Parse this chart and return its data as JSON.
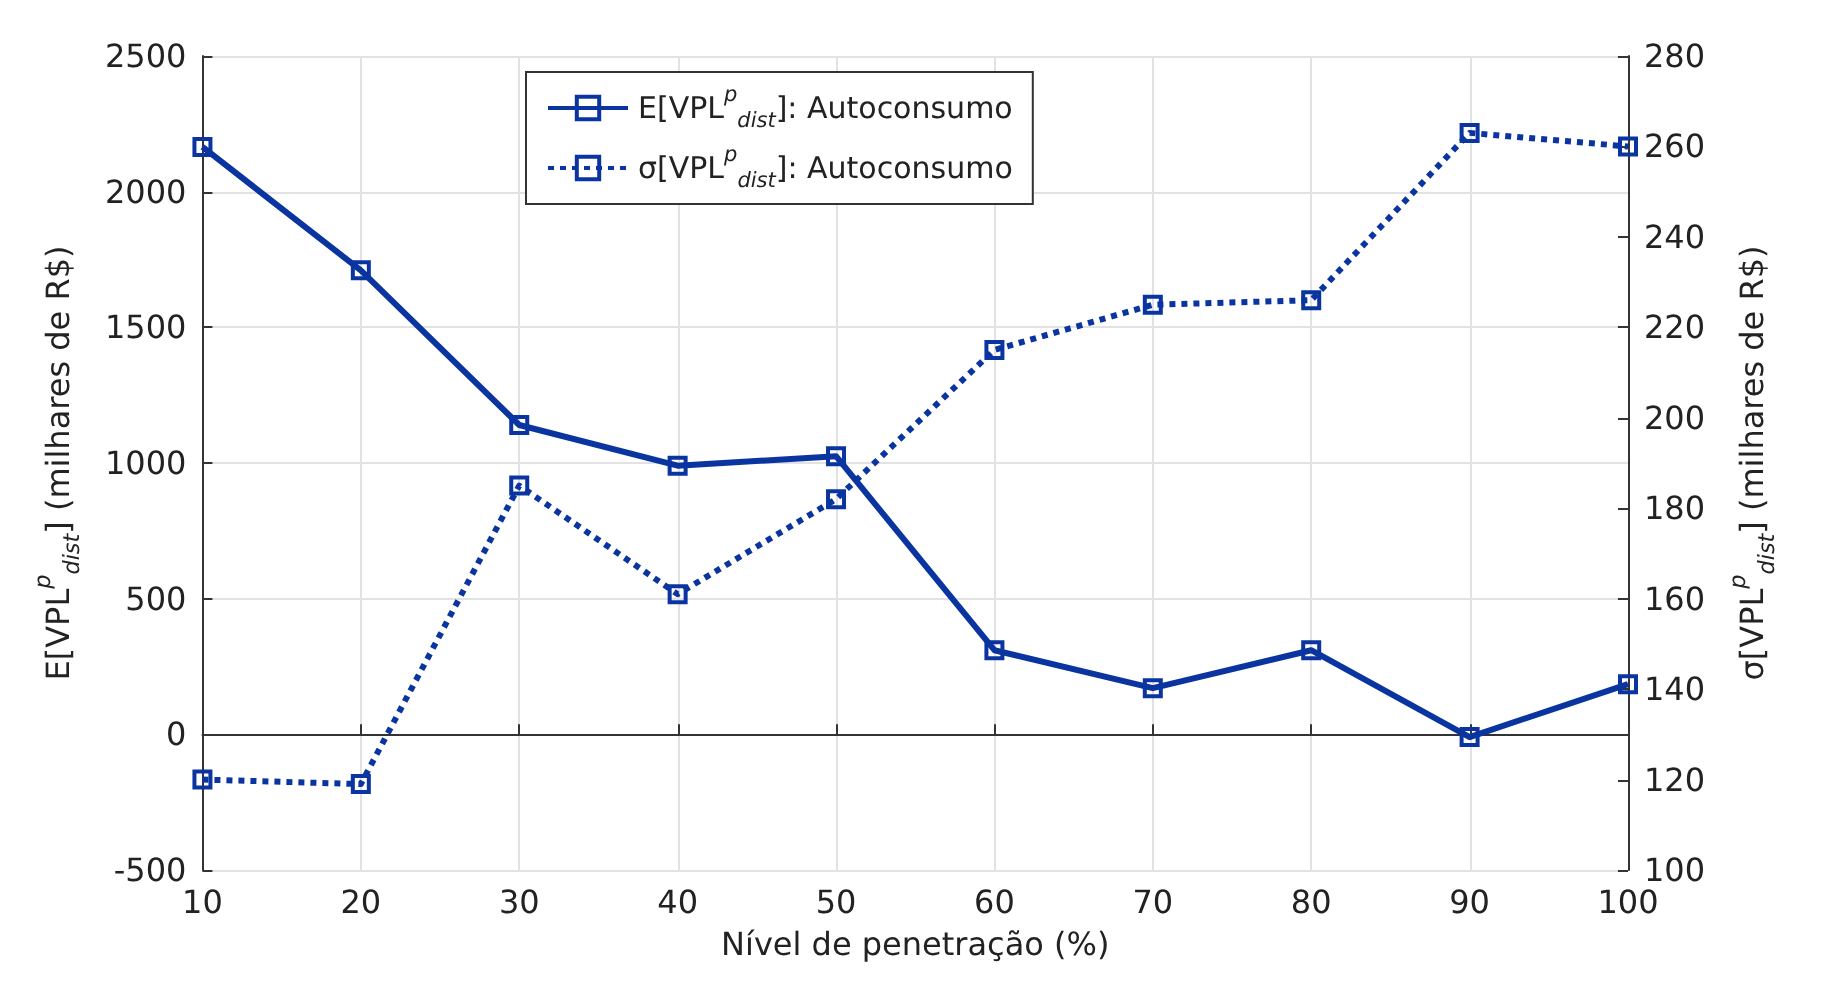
{
  "chart_data": {
    "type": "line",
    "xlabel": "Nível de penetração (%)",
    "ylabel": "E[VPL$^{p}$$_{dist}$] (milhares de R$)",
    "y2label": "σ[VPL$^{p}$$_{dist}$] (milhares de R$)",
    "x": [
      10,
      20,
      30,
      40,
      50,
      60,
      70,
      80,
      90,
      100
    ],
    "series": [
      {
        "name": "E[VPL$^{p}$$_{dist}$]: Autoconsumo",
        "color": "#0a34a0",
        "line_style": "solid",
        "values": [
          2165,
          1710,
          1140,
          990,
          1025,
          310,
          170,
          310,
          -10,
          185
        ]
      },
      {
        "name": "σ[VPL$^{p}$$_{dist}$]: Autoconsumo",
        "color": "#0a34a0",
        "line_style": "dotted",
        "axis": "y2",
        "values": [
          120,
          119,
          185,
          161,
          182,
          215,
          225,
          226,
          263,
          260
        ]
      }
    ],
    "xlim": [
      10,
      100
    ],
    "xticks": [
      10,
      20,
      30,
      40,
      50,
      60,
      70,
      80,
      90,
      100
    ],
    "ylim": [
      -500,
      2500
    ],
    "yticks": [
      -500,
      0,
      500,
      1000,
      1500,
      2000,
      2500
    ],
    "y2lim": [
      100,
      280
    ],
    "y2ticks": [
      100,
      120,
      140,
      160,
      180,
      200,
      220,
      240,
      260,
      280
    ],
    "grid": true,
    "legend": "top",
    "marker": "square"
  }
}
